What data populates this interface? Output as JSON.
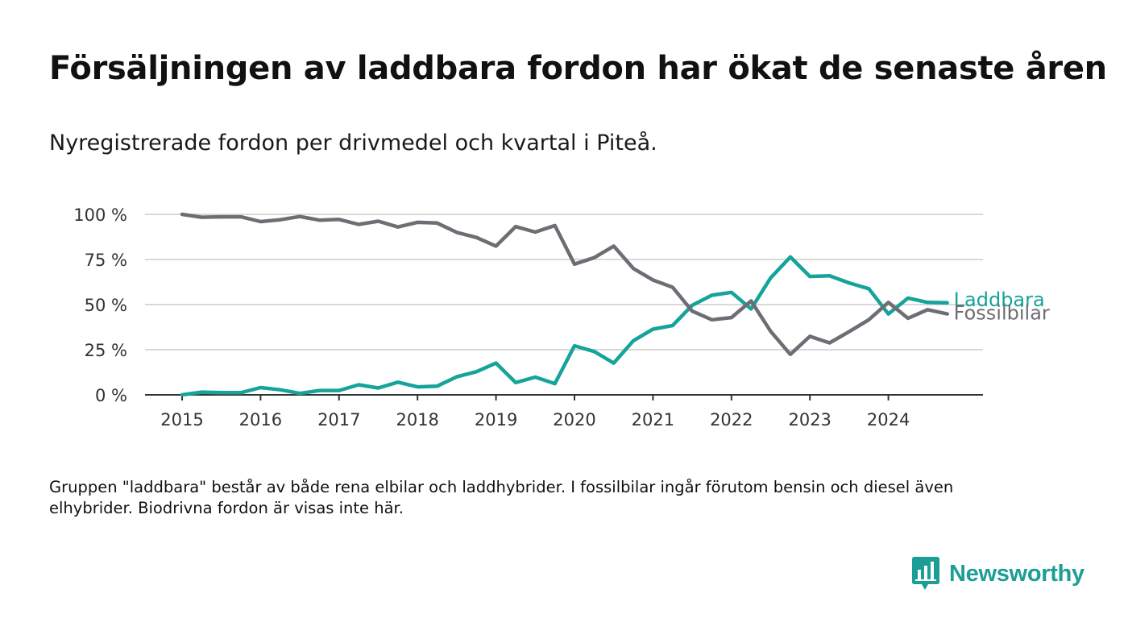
{
  "title": "Försäljningen av laddbara fordon har ökat de senaste åren",
  "subtitle": "Nyregistrerade fordon per drivmedel och kvartal i Piteå.",
  "note": "Gruppen \"laddbara\" består av både rena elbilar och laddhybrider. I fossilbilar ingår förutom bensin och diesel även elhybrider. Biodrivna fordon är visas inte här.",
  "brand": {
    "name": "Newsworthy",
    "color": "#1a9e96",
    "icon": "newsworthy-logo-icon"
  },
  "chart_data": {
    "type": "line",
    "x": [
      "2015-Q1",
      "2015-Q2",
      "2015-Q3",
      "2015-Q4",
      "2016-Q1",
      "2016-Q2",
      "2016-Q3",
      "2016-Q4",
      "2017-Q1",
      "2017-Q2",
      "2017-Q3",
      "2017-Q4",
      "2018-Q1",
      "2018-Q2",
      "2018-Q3",
      "2018-Q4",
      "2019-Q1",
      "2019-Q2",
      "2019-Q3",
      "2019-Q4",
      "2020-Q1",
      "2020-Q2",
      "2020-Q3",
      "2020-Q4",
      "2021-Q1",
      "2021-Q2",
      "2021-Q3",
      "2021-Q4",
      "2022-Q1",
      "2022-Q2",
      "2022-Q3",
      "2022-Q4",
      "2023-Q1",
      "2023-Q2",
      "2023-Q3",
      "2023-Q4",
      "2024-Q1",
      "2024-Q2",
      "2024-Q3",
      "2024-Q4"
    ],
    "x_tick_labels": [
      "2015",
      "2016",
      "2017",
      "2018",
      "2019",
      "2020",
      "2021",
      "2022",
      "2023",
      "2024"
    ],
    "y_tick_labels": [
      "0 %",
      "25 %",
      "50 %",
      "75 %",
      "100 %"
    ],
    "ylim": [
      0,
      100
    ],
    "grid": "horizontal",
    "series": [
      {
        "name": "Laddbara",
        "color": "#16a39a",
        "values": [
          0,
          1.5,
          1.2,
          1.2,
          4,
          2.8,
          0.8,
          2.4,
          2.4,
          5.6,
          3.8,
          7,
          4.4,
          4.8,
          10,
          12.8,
          17.6,
          6.8,
          9.8,
          6.2,
          27.2,
          24,
          17.6,
          30,
          36.4,
          38.4,
          49.6,
          55.2,
          56.8,
          47.6,
          64.8,
          76.4,
          65.6,
          66,
          62,
          58.8,
          44.8,
          53.6,
          51.2,
          51
        ]
      },
      {
        "name": "Fossilbilar",
        "color": "#6e6d74",
        "values": [
          100,
          98.4,
          98.6,
          98.6,
          96,
          97,
          98.8,
          96.8,
          97.2,
          94.4,
          96.2,
          93,
          95.6,
          95.2,
          90,
          87.2,
          82.4,
          93.2,
          90.2,
          93.8,
          72.4,
          76,
          82.4,
          70,
          63.6,
          59.6,
          46.4,
          41.6,
          42.8,
          52,
          35.2,
          22.4,
          32.4,
          28.8,
          35,
          41.6,
          51.2,
          42.4,
          47.2,
          44.8
        ]
      }
    ]
  }
}
